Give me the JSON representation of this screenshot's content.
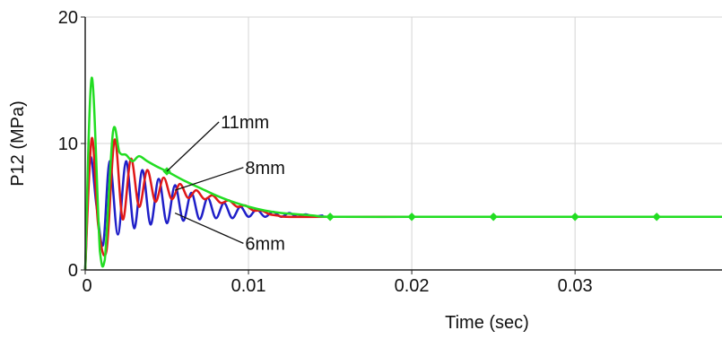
{
  "chart_data": {
    "type": "line",
    "xlabel": "Time (sec)",
    "ylabel": "P12 (MPa)",
    "xlim": [
      0,
      0.039
    ],
    "ylim": [
      0,
      20
    ],
    "x_ticks": [
      0,
      0.01,
      0.02,
      0.03
    ],
    "x_tick_labels": [
      "0",
      "0.01",
      "0.02",
      "0.03"
    ],
    "y_ticks": [
      0,
      10,
      20
    ],
    "y_tick_labels": [
      "0",
      "10",
      "20"
    ],
    "grid": true,
    "annotations": [
      {
        "text": "11mm",
        "series": "11mm",
        "point": [
          0.005,
          7.8
        ],
        "label_at": [
          0.0083,
          11.7
        ]
      },
      {
        "text": "8mm",
        "series": "8mm",
        "point": [
          0.0055,
          6.3
        ],
        "label_at": [
          0.0098,
          8.1
        ]
      },
      {
        "text": "6mm",
        "series": "6mm",
        "point": [
          0.0055,
          4.5
        ],
        "label_at": [
          0.0098,
          2.1
        ]
      }
    ],
    "series": [
      {
        "name": "6mm",
        "color": "#1f1fc8",
        "x": [
          0,
          0.0003,
          0.0007,
          0.0011,
          0.0015,
          0.002,
          0.0025,
          0.003,
          0.0035,
          0.004,
          0.0045,
          0.005,
          0.0055,
          0.006,
          0.0065,
          0.007,
          0.0075,
          0.008,
          0.0085,
          0.009,
          0.0095,
          0.01,
          0.0105,
          0.011,
          0.0115,
          0.012,
          0.0125,
          0.013,
          0.0135,
          0.014,
          0.0145,
          0.015,
          0.02,
          0.03,
          0.039
        ],
        "y": [
          0,
          8.8,
          5.0,
          2.0,
          8.6,
          2.8,
          8.6,
          3.3,
          7.9,
          3.6,
          7.2,
          3.7,
          6.7,
          3.9,
          6.1,
          4.0,
          5.7,
          4.1,
          5.3,
          4.1,
          5.0,
          4.2,
          4.8,
          4.2,
          4.6,
          4.2,
          4.5,
          4.2,
          4.4,
          4.2,
          4.3,
          4.2,
          4.2,
          4.2,
          4.2
        ]
      },
      {
        "name": "8mm",
        "color": "#e01818",
        "x": [
          0,
          0.0004,
          0.0008,
          0.0013,
          0.0018,
          0.0023,
          0.0028,
          0.0033,
          0.0038,
          0.0043,
          0.0048,
          0.0053,
          0.0058,
          0.0063,
          0.0068,
          0.0073,
          0.0078,
          0.0083,
          0.0088,
          0.0093,
          0.0098,
          0.0103,
          0.0108,
          0.0113,
          0.0118,
          0.0123,
          0.015,
          0.02,
          0.03,
          0.039
        ],
        "y": [
          0,
          10.4,
          3.5,
          1.5,
          10.3,
          4.0,
          8.8,
          5.0,
          7.9,
          5.4,
          7.3,
          5.6,
          6.8,
          5.7,
          6.3,
          5.6,
          5.9,
          5.3,
          5.5,
          5.0,
          5.1,
          4.7,
          4.7,
          4.4,
          4.3,
          4.2,
          4.2,
          4.2,
          4.2,
          4.2
        ]
      },
      {
        "name": "11mm",
        "color": "#22dd22",
        "x": [
          0,
          0.0004,
          0.0009,
          0.0012,
          0.0017,
          0.0021,
          0.0025,
          0.0029,
          0.0033,
          0.0038,
          0.0045,
          0.005,
          0.006,
          0.007,
          0.008,
          0.009,
          0.01,
          0.011,
          0.012,
          0.013,
          0.014,
          0.015,
          0.02,
          0.025,
          0.03,
          0.035,
          0.039
        ],
        "y": [
          0,
          15.2,
          1.5,
          0.8,
          10.9,
          9.3,
          9.1,
          8.6,
          9.0,
          8.6,
          8.1,
          7.8,
          7.1,
          6.5,
          5.9,
          5.4,
          5.0,
          4.7,
          4.5,
          4.4,
          4.3,
          4.2,
          4.2,
          4.2,
          4.2,
          4.2,
          4.2
        ],
        "markers_at": [
          0.005,
          0.015,
          0.02,
          0.025,
          0.03,
          0.035
        ]
      }
    ]
  }
}
